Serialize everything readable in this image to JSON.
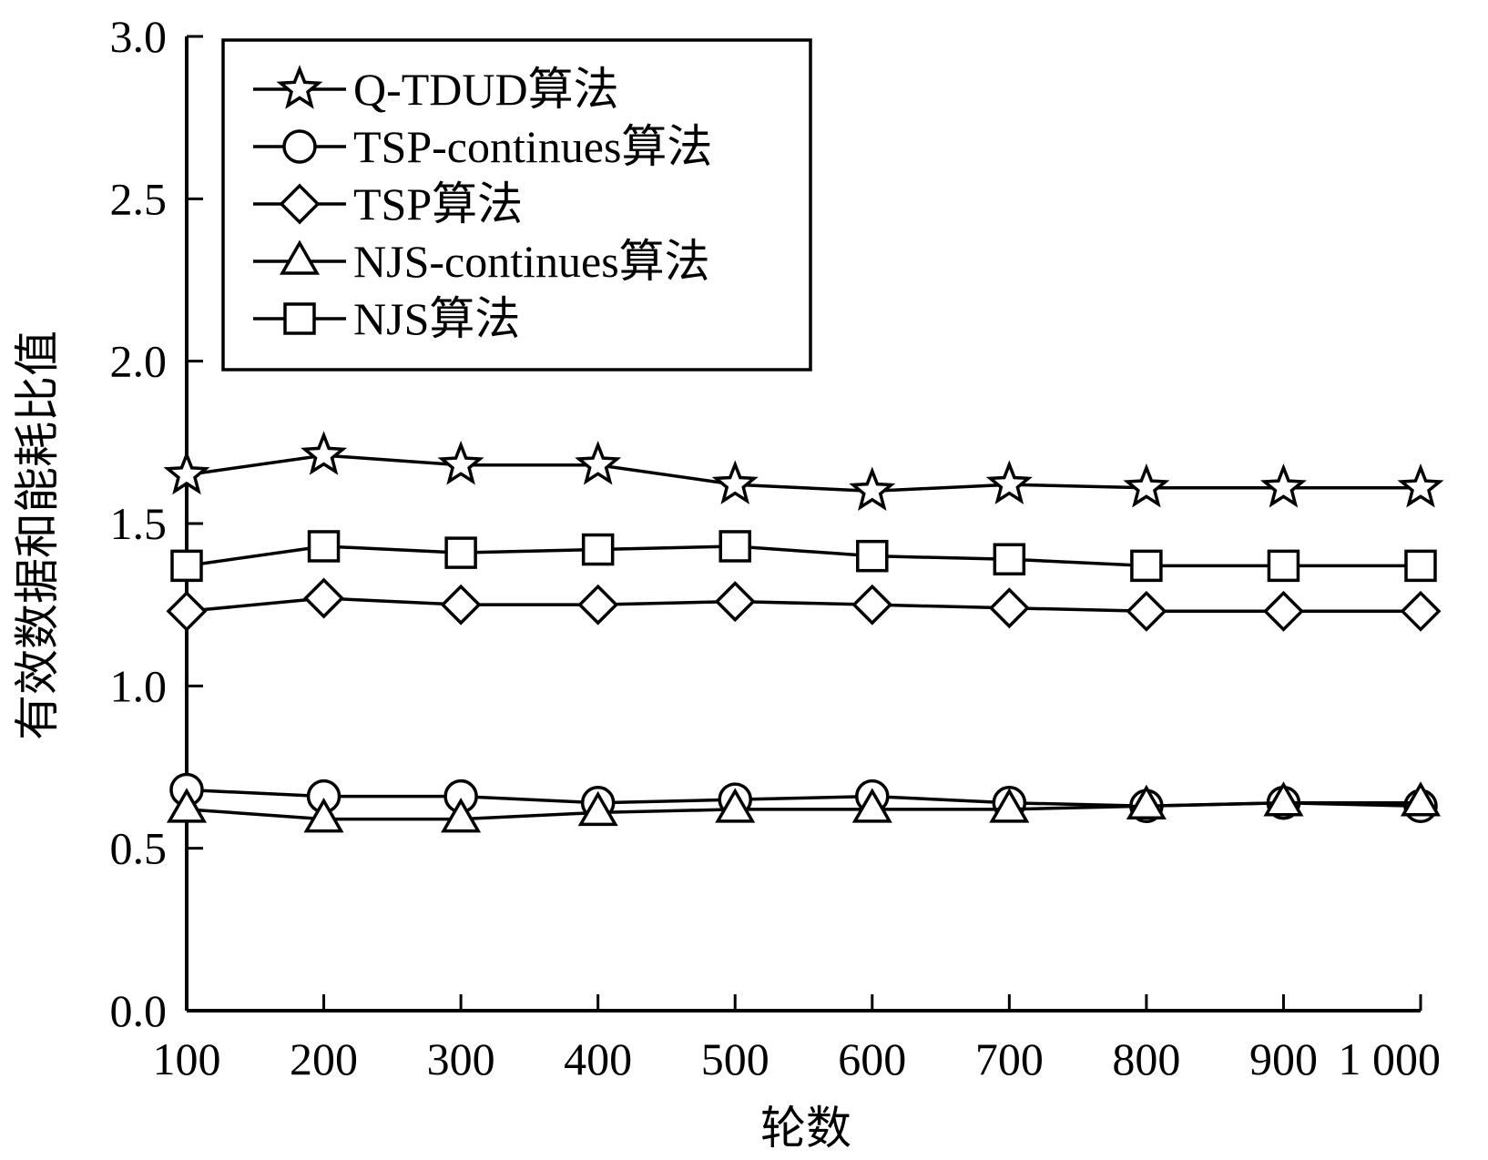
{
  "chart_data": {
    "type": "line",
    "title": "",
    "xlabel": "轮数",
    "ylabel": "有效数据和能耗比值",
    "categories": [
      "100",
      "200",
      "300",
      "400",
      "500",
      "600",
      "700",
      "800",
      "900",
      "1 000"
    ],
    "x": [
      100,
      200,
      300,
      400,
      500,
      600,
      700,
      800,
      900,
      1000
    ],
    "ylim": [
      0.0,
      3.0
    ],
    "yticks": [
      "0.0",
      "0.5",
      "1.0",
      "1.5",
      "2.0",
      "2.5",
      "3.0"
    ],
    "grid": false,
    "legend_position": "top-left",
    "series": [
      {
        "name": "Q-TDUD算法",
        "marker": "star",
        "values": [
          1.65,
          1.71,
          1.68,
          1.68,
          1.62,
          1.6,
          1.62,
          1.61,
          1.61,
          1.61
        ]
      },
      {
        "name": "TSP-continues算法",
        "marker": "circle",
        "values": [
          0.68,
          0.66,
          0.66,
          0.64,
          0.65,
          0.66,
          0.64,
          0.63,
          0.64,
          0.63
        ]
      },
      {
        "name": "TSP算法",
        "marker": "diamond",
        "values": [
          1.23,
          1.27,
          1.25,
          1.25,
          1.26,
          1.25,
          1.24,
          1.23,
          1.23,
          1.23
        ]
      },
      {
        "name": "NJS-continues算法",
        "marker": "triangle",
        "values": [
          0.62,
          0.59,
          0.59,
          0.61,
          0.62,
          0.62,
          0.62,
          0.63,
          0.64,
          0.64
        ]
      },
      {
        "name": "NJS算法",
        "marker": "square",
        "values": [
          1.37,
          1.43,
          1.41,
          1.42,
          1.43,
          1.4,
          1.39,
          1.37,
          1.37,
          1.37
        ]
      }
    ]
  }
}
